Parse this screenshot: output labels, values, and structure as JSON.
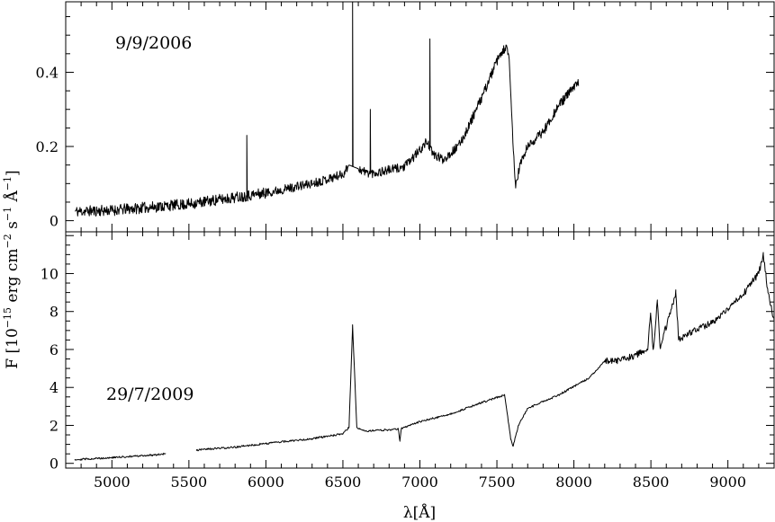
{
  "chart_data": [
    {
      "type": "line",
      "annotation": "9/9/2006",
      "xlim": [
        4700,
        9300
      ],
      "ylim": [
        -0.03,
        0.59
      ],
      "yticks": [
        0,
        0.2,
        0.4
      ],
      "ytick_labels": [
        "0",
        "0.2",
        "0.4"
      ],
      "continuum": [
        [
          4760,
          0.025
        ],
        [
          5000,
          0.028
        ],
        [
          5500,
          0.045
        ],
        [
          6000,
          0.075
        ],
        [
          6300,
          0.1
        ],
        [
          6500,
          0.125
        ],
        [
          6540,
          0.15
        ],
        [
          6600,
          0.14
        ],
        [
          6650,
          0.13
        ],
        [
          6700,
          0.128
        ],
        [
          6900,
          0.145
        ],
        [
          7000,
          0.19
        ],
        [
          7050,
          0.215
        ],
        [
          7080,
          0.18
        ],
        [
          7150,
          0.165
        ],
        [
          7250,
          0.2
        ],
        [
          7300,
          0.24
        ],
        [
          7400,
          0.33
        ],
        [
          7500,
          0.43
        ],
        [
          7560,
          0.47
        ],
        [
          7580,
          0.43
        ],
        [
          7600,
          0.25
        ],
        [
          7620,
          0.09
        ],
        [
          7650,
          0.15
        ],
        [
          7700,
          0.2
        ],
        [
          7800,
          0.24
        ],
        [
          7900,
          0.31
        ],
        [
          8000,
          0.36
        ],
        [
          8030,
          0.37
        ]
      ],
      "emission_lines": [
        [
          5876,
          0.23
        ],
        [
          6563,
          0.6
        ],
        [
          6678,
          0.3
        ],
        [
          7065,
          0.49
        ]
      ],
      "series": [
        {
          "values": []
        }
      ]
    },
    {
      "type": "line",
      "annotation": "29/7/2009",
      "xlim": [
        4700,
        9300
      ],
      "ylim": [
        -0.25,
        12.2
      ],
      "yticks": [
        0,
        2,
        4,
        6,
        8,
        10
      ],
      "ytick_labels": [
        "0",
        "2",
        "4",
        "6",
        "8",
        "10"
      ],
      "segments": [
        [
          [
            4760,
            0.2
          ],
          [
            5000,
            0.3
          ],
          [
            5200,
            0.4
          ],
          [
            5350,
            0.5
          ]
        ],
        [
          [
            5550,
            0.7
          ],
          [
            5800,
            0.85
          ],
          [
            6000,
            1.05
          ],
          [
            6300,
            1.3
          ],
          [
            6500,
            1.55
          ],
          [
            6540,
            1.9
          ],
          [
            6563,
            7.3
          ],
          [
            6590,
            1.9
          ],
          [
            6650,
            1.7
          ],
          [
            6860,
            1.8
          ],
          [
            6870,
            1.2
          ],
          [
            6880,
            1.85
          ],
          [
            7000,
            2.2
          ],
          [
            7200,
            2.6
          ],
          [
            7400,
            3.2
          ],
          [
            7550,
            3.6
          ],
          [
            7590,
            1.3
          ],
          [
            7605,
            0.9
          ],
          [
            7640,
            2.0
          ],
          [
            7700,
            2.9
          ],
          [
            7900,
            3.6
          ],
          [
            8100,
            4.5
          ],
          [
            8200,
            5.4
          ],
          [
            8300,
            5.4
          ],
          [
            8400,
            5.7
          ],
          [
            8480,
            6.0
          ],
          [
            8498,
            7.9
          ],
          [
            8515,
            6.0
          ],
          [
            8542,
            8.5
          ],
          [
            8560,
            6.1
          ],
          [
            8662,
            9.0
          ],
          [
            8680,
            6.5
          ],
          [
            8800,
            7.1
          ],
          [
            8900,
            7.4
          ],
          [
            9000,
            8.1
          ],
          [
            9100,
            8.9
          ],
          [
            9150,
            9.5
          ],
          [
            9200,
            10.0
          ],
          [
            9230,
            11.0
          ],
          [
            9260,
            9.0
          ],
          [
            9300,
            7.5
          ]
        ]
      ],
      "series": [
        {
          "values": []
        }
      ]
    }
  ],
  "x_axis": {
    "ticks": [
      5000,
      5500,
      6000,
      6500,
      7000,
      7500,
      8000,
      8500,
      9000
    ],
    "tick_labels": [
      "5000",
      "5500",
      "6000",
      "6500",
      "7000",
      "7500",
      "8000",
      "8500",
      "9000"
    ],
    "label": "λ[Å]"
  },
  "y_axis_label": {
    "prefix": "F [10",
    "exp1": "−15",
    "mid1": " erg cm",
    "exp2": "−2",
    "mid2": " s",
    "exp3": "−1",
    "mid3": " Å",
    "exp4": "−1",
    "suffix": "]"
  },
  "style": {
    "line_color": "#000000",
    "background": "#ffffff"
  }
}
